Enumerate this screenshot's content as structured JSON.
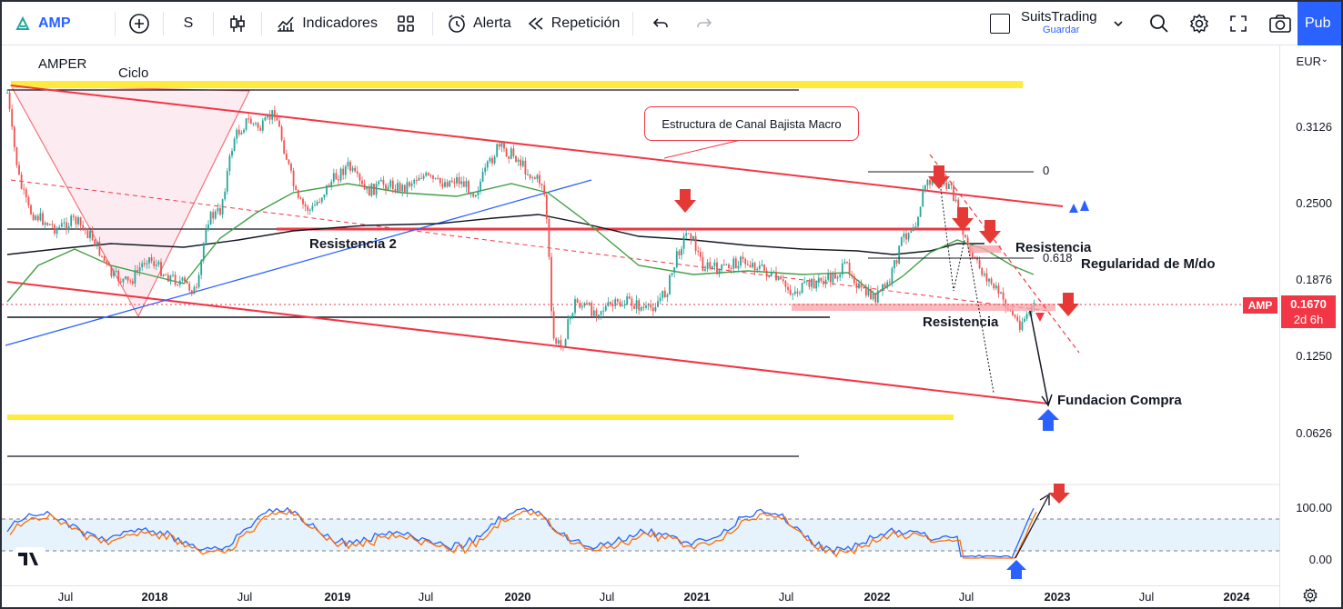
{
  "toolbar": {
    "symbol": "AMP",
    "interval": "S",
    "indicators_label": "Indicadores",
    "alert_label": "Alerta",
    "replay_label": "Repetición",
    "account_name": "SuitsTrading",
    "save_label": "Guardar",
    "publish_label": "Pub"
  },
  "chart": {
    "symbol_name": "AMPER",
    "currency": "EUR",
    "last_price": "0.1670",
    "countdown": "2d 6h",
    "price_ticks": [
      "0.3126",
      "0.2500",
      "0.1876",
      "0.1250",
      "0.0626",
      "100.00",
      "0.00"
    ],
    "time_ticks": [
      {
        "label": "Jul",
        "bold": false
      },
      {
        "label": "2018",
        "bold": true
      },
      {
        "label": "Jul",
        "bold": false
      },
      {
        "label": "2019",
        "bold": true
      },
      {
        "label": "Jul",
        "bold": false
      },
      {
        "label": "2020",
        "bold": true
      },
      {
        "label": "Jul",
        "bold": false
      },
      {
        "label": "2021",
        "bold": true
      },
      {
        "label": "Jul",
        "bold": false
      },
      {
        "label": "2022",
        "bold": true
      },
      {
        "label": "Jul",
        "bold": false
      },
      {
        "label": "2023",
        "bold": true
      },
      {
        "label": "Jul",
        "bold": false
      },
      {
        "label": "2024",
        "bold": true
      }
    ],
    "annotations": {
      "ciclo": "Ciclo",
      "canal": "Estructura de Canal Bajista Macro",
      "resistencia2": "Resistencia 2",
      "resistencia_top": "Resistencia",
      "resistencia_bottom": "Resistencia",
      "regularidad": "Regularidad de M/do",
      "fundacion": "Fundacion Compra",
      "fib_0": "0",
      "fib_618": "0.618"
    },
    "colors": {
      "up": "#26a69a",
      "down": "#ef5350",
      "channel": "#f23645",
      "highlight": "#ffeb3b",
      "ma_fast": "#43a047",
      "ma_slow": "#131722",
      "trend": "#2962ff",
      "stoch_k": "#2962ff",
      "stoch_d": "#ff6d00"
    }
  }
}
